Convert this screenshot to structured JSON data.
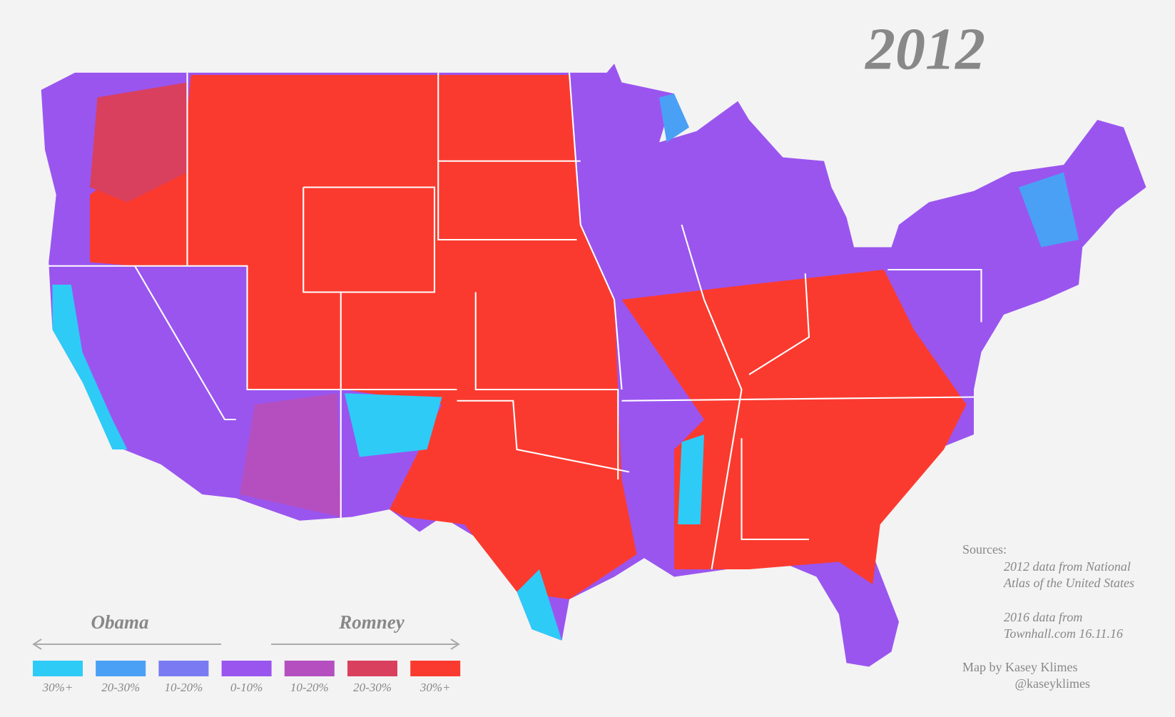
{
  "title": "2012",
  "legend": {
    "left_label": "Obama",
    "right_label": "Romney",
    "items": [
      {
        "label": "30%+",
        "color": "#2ecbf7"
      },
      {
        "label": "20-30%",
        "color": "#4aa0f5"
      },
      {
        "label": "10-20%",
        "color": "#7a7bf2"
      },
      {
        "label": "0-10%",
        "color": "#9a55ef"
      },
      {
        "label": "10-20%",
        "color": "#b54fc0"
      },
      {
        "label": "20-30%",
        "color": "#d9405e"
      },
      {
        "label": "30%+",
        "color": "#fb3a2f"
      }
    ]
  },
  "sources": {
    "heading": "Sources:",
    "lines": [
      "2012 data from National",
      "Atlas of the United States",
      "2016 data from",
      "Townhall.com 16.11.16"
    ]
  },
  "credit": {
    "name": "Map by Kasey Klimes",
    "handle": "@kaseyklimes"
  }
}
